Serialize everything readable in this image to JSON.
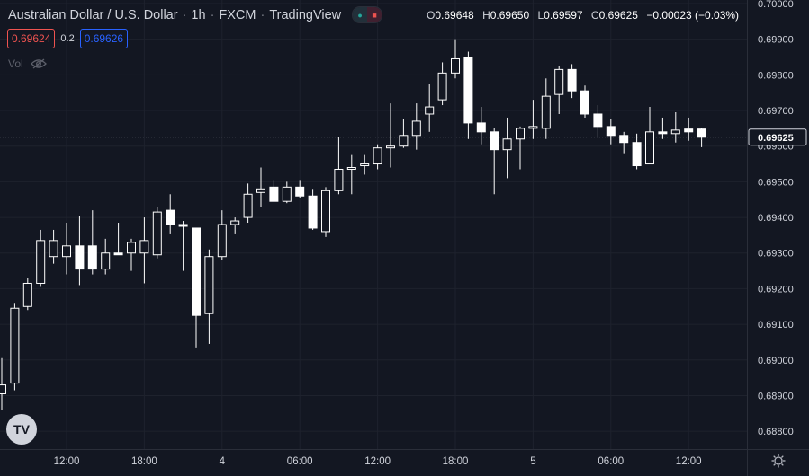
{
  "header": {
    "symbol": "Australian Dollar / U.S. Dollar",
    "interval": "1h",
    "exchange": "FXCM",
    "source": "TradingView"
  },
  "ohlc": {
    "open_label": "O",
    "open": "0.69648",
    "high_label": "H",
    "high": "0.69650",
    "low_label": "L",
    "low": "0.69597",
    "close_label": "C",
    "close": "0.69625",
    "change": "−0.00023 (−0.03%)"
  },
  "quote": {
    "bid": "0.69624",
    "spread": "0.2",
    "ask": "0.69626"
  },
  "volume_label": "Vol",
  "logo_text": "TV",
  "colors": {
    "background": "#131722",
    "grid": "#1e222d",
    "candle_up": "#ffffff",
    "candle_down": "#ffffff",
    "text": "#d1d4dc",
    "last_price_bg": "#131722",
    "bid": "#ef5350",
    "ask": "#2962ff"
  },
  "chart_data": {
    "type": "candlestick",
    "ylim": [
      0.6875,
      0.7001
    ],
    "y_ticks": [
      "0.70000",
      "0.69900",
      "0.69800",
      "0.69700",
      "0.69600",
      "0.69500",
      "0.69400",
      "0.69300",
      "0.69200",
      "0.69100",
      "0.69000",
      "0.68900",
      "0.68800"
    ],
    "last_price": "0.69625",
    "x_ticks": [
      {
        "i": 5,
        "label": "12:00"
      },
      {
        "i": 11,
        "label": "18:00"
      },
      {
        "i": 17,
        "label": "4"
      },
      {
        "i": 23,
        "label": "06:00"
      },
      {
        "i": 29,
        "label": "12:00"
      },
      {
        "i": 35,
        "label": "18:00"
      },
      {
        "i": 41,
        "label": "5"
      },
      {
        "i": 47,
        "label": "06:00"
      },
      {
        "i": 53,
        "label": "12:00"
      }
    ],
    "candles": [
      {
        "o": 0.68905,
        "h": 0.69005,
        "l": 0.6886,
        "c": 0.6893
      },
      {
        "o": 0.68935,
        "h": 0.6916,
        "l": 0.68915,
        "c": 0.69145
      },
      {
        "o": 0.6915,
        "h": 0.6923,
        "l": 0.6914,
        "c": 0.69215
      },
      {
        "o": 0.69215,
        "h": 0.69365,
        "l": 0.69205,
        "c": 0.69335
      },
      {
        "o": 0.6929,
        "h": 0.69365,
        "l": 0.6927,
        "c": 0.69335
      },
      {
        "o": 0.6929,
        "h": 0.69385,
        "l": 0.6924,
        "c": 0.6932
      },
      {
        "o": 0.6932,
        "h": 0.69405,
        "l": 0.6921,
        "c": 0.69255
      },
      {
        "o": 0.6932,
        "h": 0.6942,
        "l": 0.6924,
        "c": 0.69255
      },
      {
        "o": 0.69255,
        "h": 0.6934,
        "l": 0.6924,
        "c": 0.693
      },
      {
        "o": 0.693,
        "h": 0.69385,
        "l": 0.693,
        "c": 0.69295
      },
      {
        "o": 0.693,
        "h": 0.6934,
        "l": 0.6925,
        "c": 0.6933
      },
      {
        "o": 0.693,
        "h": 0.694,
        "l": 0.69215,
        "c": 0.69335
      },
      {
        "o": 0.69295,
        "h": 0.6943,
        "l": 0.69285,
        "c": 0.69415
      },
      {
        "o": 0.6942,
        "h": 0.69465,
        "l": 0.69355,
        "c": 0.6938
      },
      {
        "o": 0.6938,
        "h": 0.6939,
        "l": 0.6925,
        "c": 0.69375
      },
      {
        "o": 0.6937,
        "h": 0.6937,
        "l": 0.69035,
        "c": 0.69125
      },
      {
        "o": 0.6913,
        "h": 0.6931,
        "l": 0.69045,
        "c": 0.6929
      },
      {
        "o": 0.6929,
        "h": 0.6942,
        "l": 0.6928,
        "c": 0.6938
      },
      {
        "o": 0.6938,
        "h": 0.694,
        "l": 0.69355,
        "c": 0.6939
      },
      {
        "o": 0.694,
        "h": 0.69495,
        "l": 0.69385,
        "c": 0.69465
      },
      {
        "o": 0.6947,
        "h": 0.6954,
        "l": 0.6943,
        "c": 0.6948
      },
      {
        "o": 0.69485,
        "h": 0.69505,
        "l": 0.69445,
        "c": 0.69445
      },
      {
        "o": 0.69445,
        "h": 0.695,
        "l": 0.6944,
        "c": 0.69485
      },
      {
        "o": 0.69485,
        "h": 0.69505,
        "l": 0.69455,
        "c": 0.6946
      },
      {
        "o": 0.6946,
        "h": 0.6948,
        "l": 0.69365,
        "c": 0.6937
      },
      {
        "o": 0.6936,
        "h": 0.69485,
        "l": 0.69345,
        "c": 0.69475
      },
      {
        "o": 0.69475,
        "h": 0.69625,
        "l": 0.69465,
        "c": 0.69535
      },
      {
        "o": 0.69535,
        "h": 0.69575,
        "l": 0.69465,
        "c": 0.6954
      },
      {
        "o": 0.69545,
        "h": 0.69575,
        "l": 0.6952,
        "c": 0.6955
      },
      {
        "o": 0.6955,
        "h": 0.69605,
        "l": 0.69535,
        "c": 0.69595
      },
      {
        "o": 0.69595,
        "h": 0.6972,
        "l": 0.6954,
        "c": 0.696
      },
      {
        "o": 0.696,
        "h": 0.69675,
        "l": 0.69595,
        "c": 0.6963
      },
      {
        "o": 0.6963,
        "h": 0.6972,
        "l": 0.6959,
        "c": 0.6967
      },
      {
        "o": 0.6969,
        "h": 0.69775,
        "l": 0.6964,
        "c": 0.6971
      },
      {
        "o": 0.6973,
        "h": 0.69835,
        "l": 0.69715,
        "c": 0.69805
      },
      {
        "o": 0.69805,
        "h": 0.699,
        "l": 0.6979,
        "c": 0.69845
      },
      {
        "o": 0.6985,
        "h": 0.69865,
        "l": 0.6962,
        "c": 0.69665
      },
      {
        "o": 0.69665,
        "h": 0.6971,
        "l": 0.69605,
        "c": 0.6964
      },
      {
        "o": 0.6964,
        "h": 0.6965,
        "l": 0.69465,
        "c": 0.6959
      },
      {
        "o": 0.6959,
        "h": 0.6968,
        "l": 0.6951,
        "c": 0.6962
      },
      {
        "o": 0.6962,
        "h": 0.69655,
        "l": 0.69535,
        "c": 0.6965
      },
      {
        "o": 0.6965,
        "h": 0.6973,
        "l": 0.6962,
        "c": 0.69655
      },
      {
        "o": 0.6965,
        "h": 0.6979,
        "l": 0.6962,
        "c": 0.6974
      },
      {
        "o": 0.69745,
        "h": 0.69825,
        "l": 0.6969,
        "c": 0.69815
      },
      {
        "o": 0.69815,
        "h": 0.6983,
        "l": 0.69735,
        "c": 0.69755
      },
      {
        "o": 0.69755,
        "h": 0.6977,
        "l": 0.6968,
        "c": 0.6969
      },
      {
        "o": 0.6969,
        "h": 0.69715,
        "l": 0.69625,
        "c": 0.69655
      },
      {
        "o": 0.69655,
        "h": 0.69675,
        "l": 0.69605,
        "c": 0.6963
      },
      {
        "o": 0.6963,
        "h": 0.6964,
        "l": 0.6958,
        "c": 0.6961
      },
      {
        "o": 0.6961,
        "h": 0.69635,
        "l": 0.69535,
        "c": 0.69545
      },
      {
        "o": 0.6955,
        "h": 0.6971,
        "l": 0.6955,
        "c": 0.6964
      },
      {
        "o": 0.6964,
        "h": 0.6968,
        "l": 0.6962,
        "c": 0.69635
      },
      {
        "o": 0.69635,
        "h": 0.69695,
        "l": 0.6961,
        "c": 0.69645
      },
      {
        "o": 0.69648,
        "h": 0.6968,
        "l": 0.69615,
        "c": 0.6964
      },
      {
        "o": 0.69648,
        "h": 0.6965,
        "l": 0.69597,
        "c": 0.69625
      }
    ]
  }
}
